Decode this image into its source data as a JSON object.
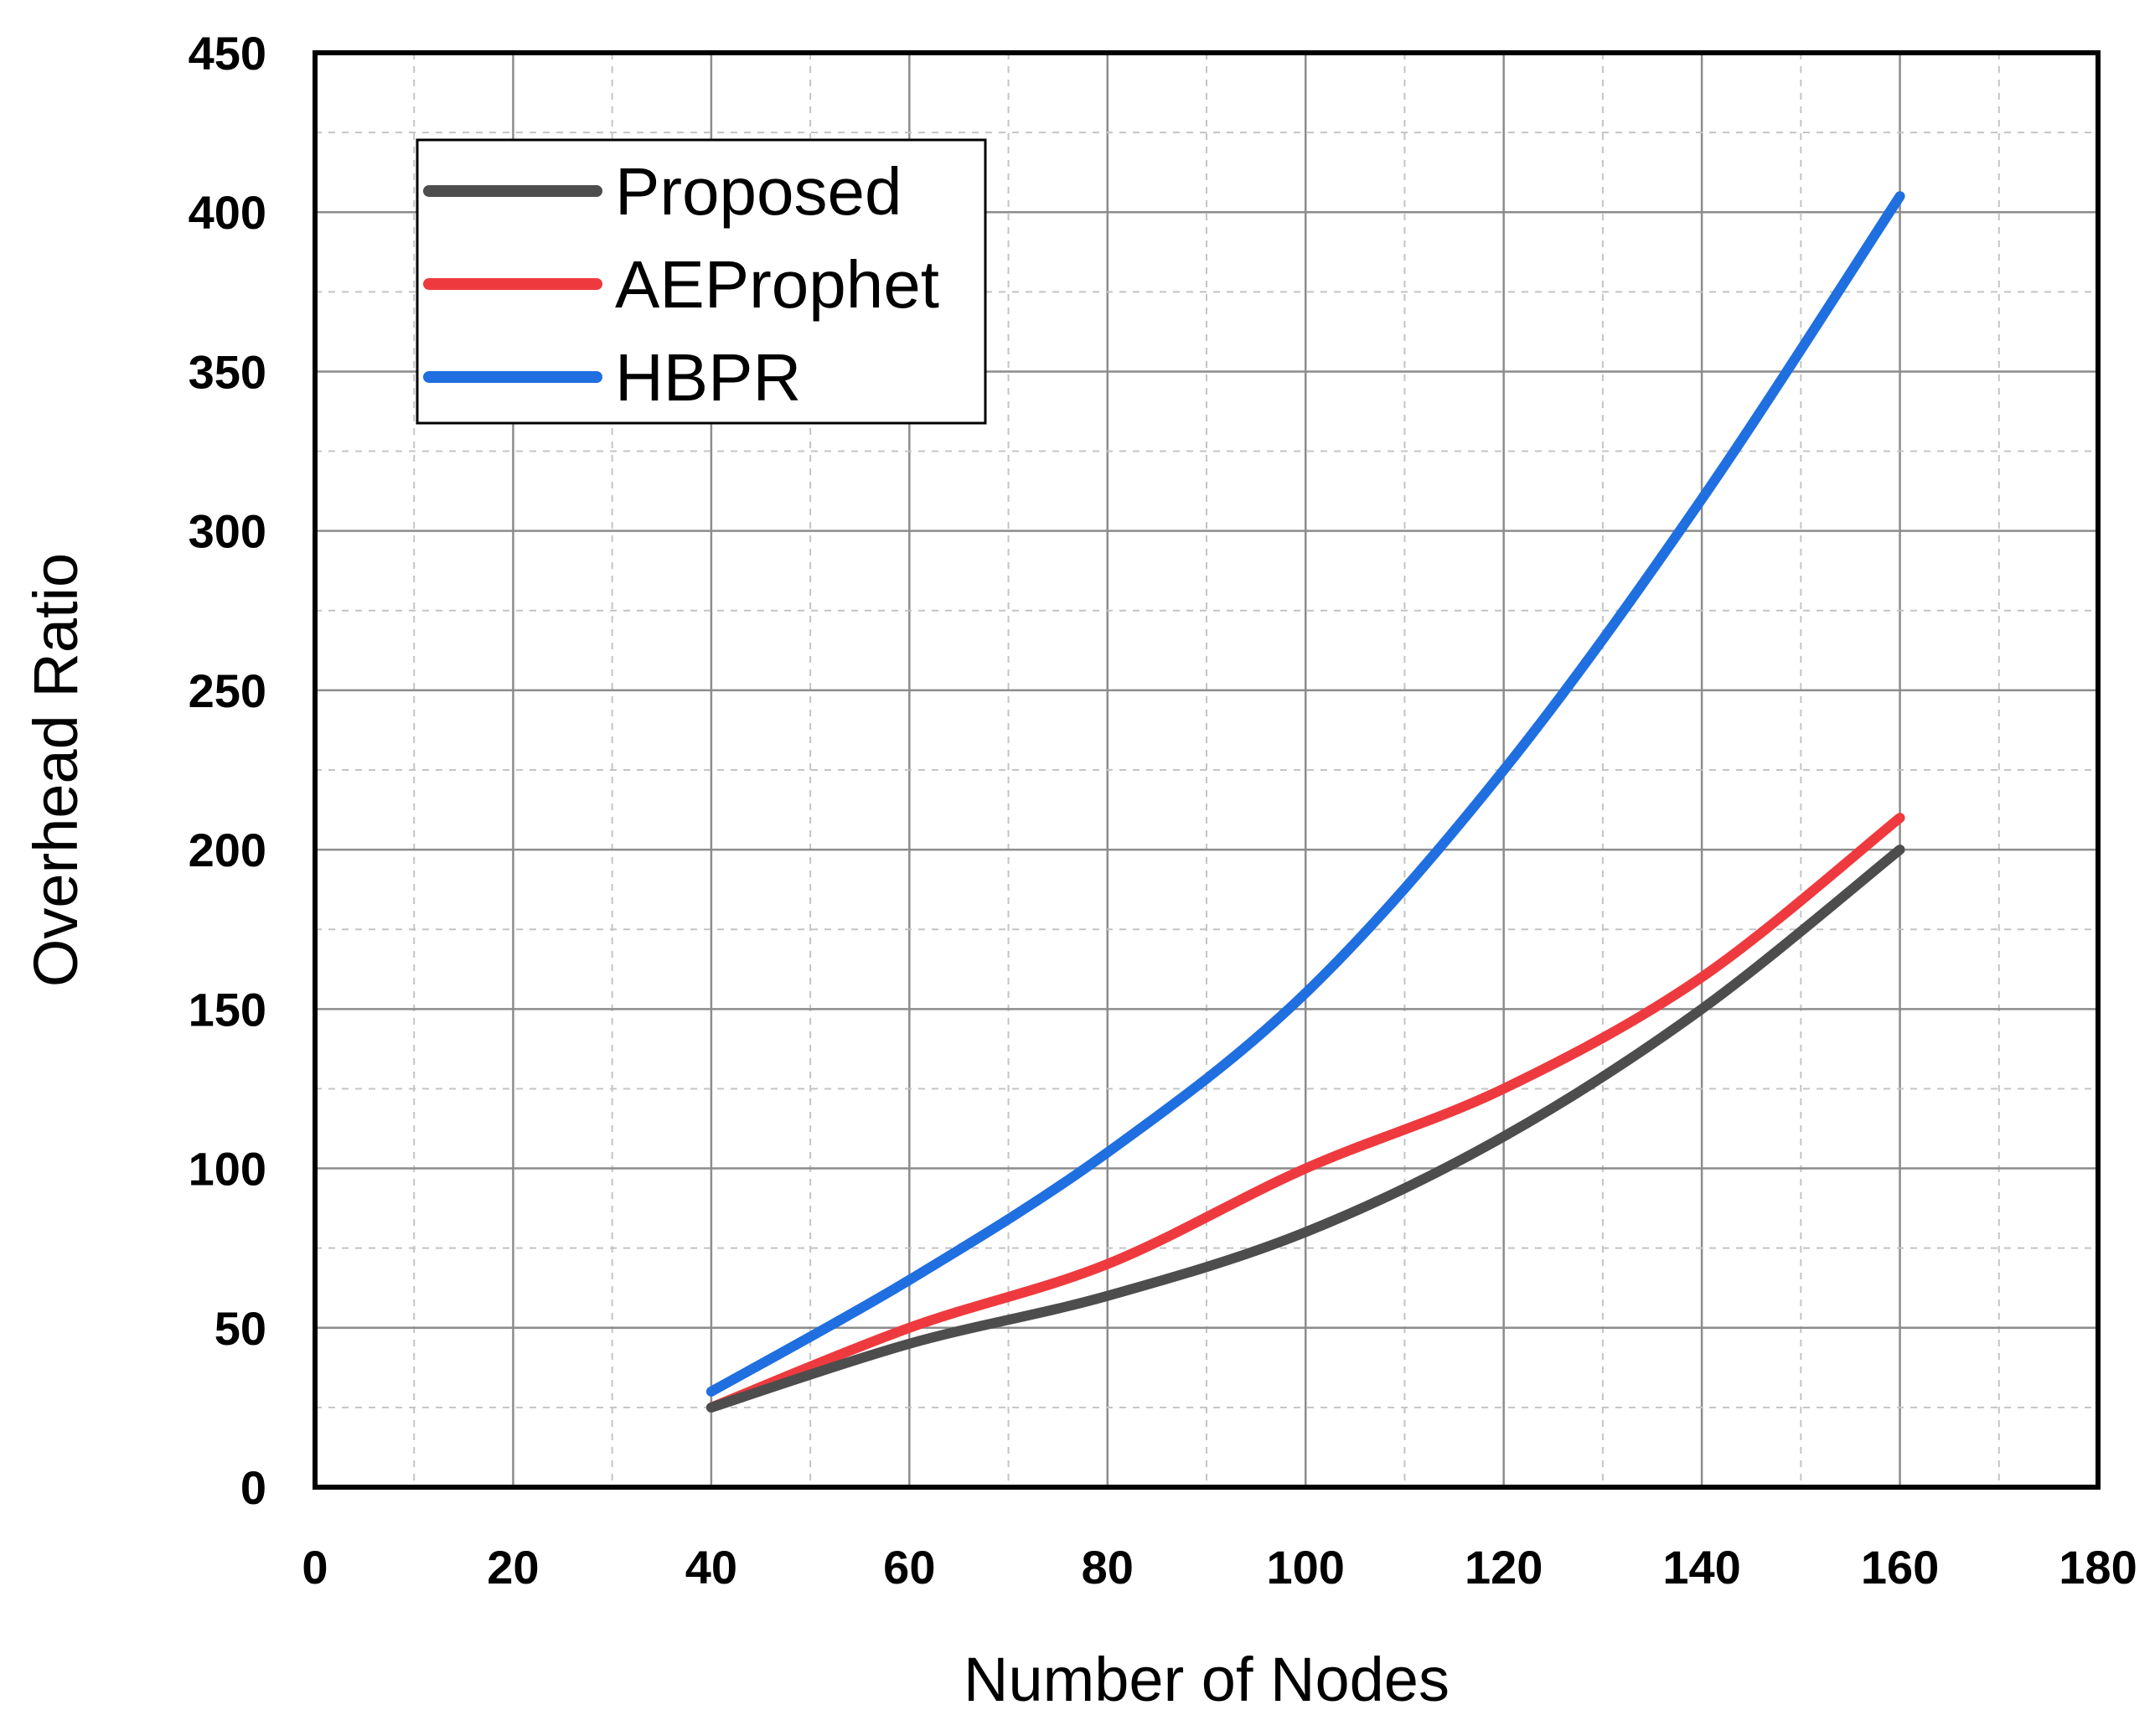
{
  "chart_data": {
    "type": "line",
    "title": "",
    "xlabel": "Number of Nodes",
    "ylabel": "Overhead Ratio",
    "xlim": [
      0,
      180
    ],
    "ylim": [
      0,
      450
    ],
    "xticks": [
      0,
      20,
      40,
      60,
      80,
      100,
      120,
      140,
      160,
      180
    ],
    "yticks": [
      0,
      50,
      100,
      150,
      200,
      250,
      300,
      350,
      400,
      450
    ],
    "grid": true,
    "legend_position": "top-left",
    "x": [
      40,
      60,
      80,
      100,
      120,
      140,
      160
    ],
    "series": [
      {
        "name": "Proposed",
        "color": "#4d4d4d",
        "values": [
          25,
          45,
          60,
          80,
          110,
          150,
          200
        ]
      },
      {
        "name": "AEProphet",
        "color": "#ee3a3f",
        "values": [
          25,
          50,
          70,
          100,
          125,
          160,
          210
        ]
      },
      {
        "name": "HBPR",
        "color": "#1f6fe0",
        "values": [
          30,
          65,
          105,
          155,
          225,
          310,
          405
        ]
      }
    ]
  }
}
